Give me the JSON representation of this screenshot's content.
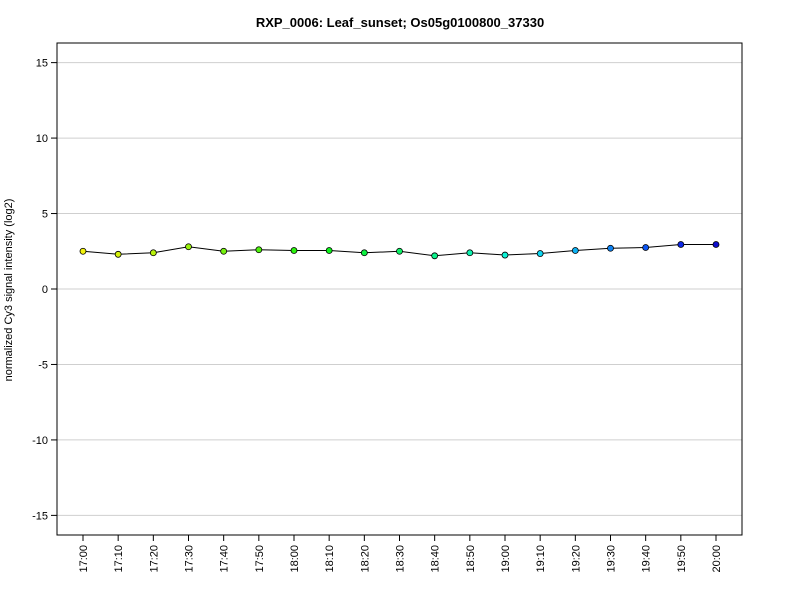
{
  "chart_data": {
    "type": "line",
    "title": "RXP_0006: Leaf_sunset; Os05g0100800_37330",
    "xlabel": "",
    "ylabel": "normalized Cy3 signal intensity (log2)",
    "ylim": [
      -16.3,
      16.3
    ],
    "yticks": [
      -15,
      -10,
      -5,
      0,
      5,
      10,
      15
    ],
    "grid": true,
    "categories": [
      "17:00",
      "17:10",
      "17:20",
      "17:30",
      "17:40",
      "17:50",
      "18:00",
      "18:10",
      "18:20",
      "18:30",
      "18:40",
      "18:50",
      "19:00",
      "19:10",
      "19:20",
      "19:30",
      "19:40",
      "19:50",
      "20:00"
    ],
    "series": [
      {
        "values": [
          2.5,
          2.3,
          2.4,
          2.8,
          2.5,
          2.6,
          2.55,
          2.55,
          2.4,
          2.5,
          2.2,
          2.4,
          2.25,
          2.35,
          2.55,
          2.7,
          2.75,
          2.95,
          2.95
        ],
        "point_colors": [
          "#f2f20d",
          "#d6f20d",
          "#b8f20d",
          "#9af20d",
          "#75f20d",
          "#4ff20d",
          "#2af20d",
          "#0df21b",
          "#0df240",
          "#0df266",
          "#0df28b",
          "#0df2b0",
          "#0df2d6",
          "#0dd6f2",
          "#0db0f2",
          "#0d82f2",
          "#0d55f2",
          "#0d27e6",
          "#0d0dcc"
        ],
        "line_color": "#000000"
      }
    ]
  }
}
